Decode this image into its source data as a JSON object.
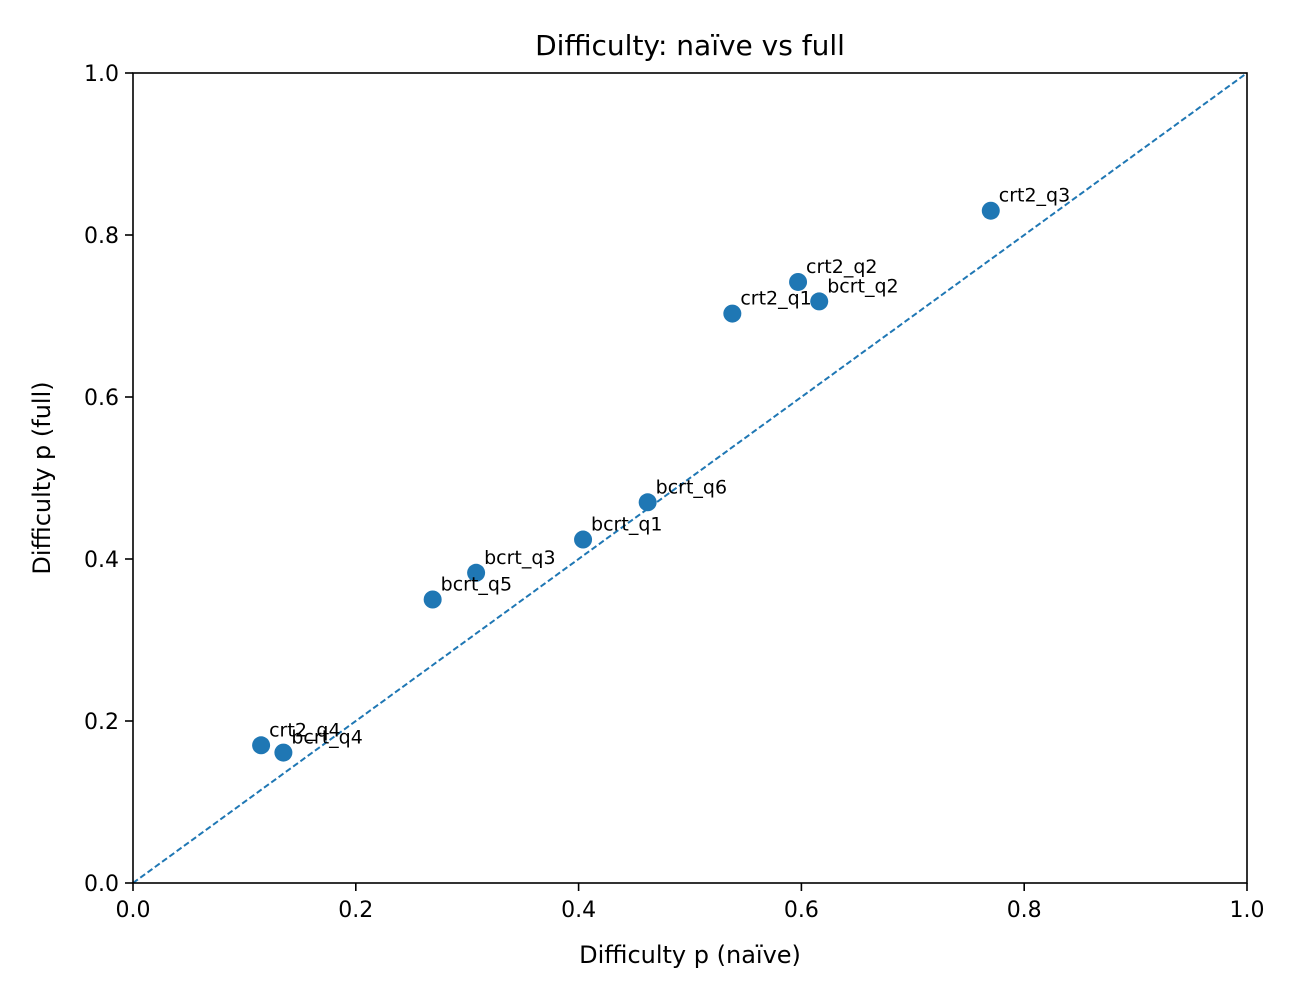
{
  "chart_data": {
    "type": "scatter",
    "title": "Difficulty: naïve vs full",
    "xlabel": "Difficulty p (naïve)",
    "ylabel": "Difficulty p (full)",
    "xlim": [
      0.0,
      1.0
    ],
    "ylim": [
      0.0,
      1.0
    ],
    "xticks": [
      "0.0",
      "0.2",
      "0.4",
      "0.6",
      "0.8",
      "1.0"
    ],
    "yticks": [
      "0.0",
      "0.2",
      "0.4",
      "0.6",
      "0.8",
      "1.0"
    ],
    "grid": false,
    "legend": "none",
    "point_color": "#1f77b4",
    "reference_line": {
      "style": "dashed",
      "color": "#1f77b4",
      "from": [
        0.0,
        0.0
      ],
      "to": [
        1.0,
        1.0
      ]
    },
    "points": [
      {
        "label": "crt2_q3",
        "x": 0.77,
        "y": 0.83
      },
      {
        "label": "crt2_q2",
        "x": 0.597,
        "y": 0.742
      },
      {
        "label": "bcrt_q2",
        "x": 0.616,
        "y": 0.718
      },
      {
        "label": "crt2_q1",
        "x": 0.538,
        "y": 0.703
      },
      {
        "label": "bcrt_q6",
        "x": 0.462,
        "y": 0.47
      },
      {
        "label": "bcrt_q1",
        "x": 0.404,
        "y": 0.424
      },
      {
        "label": "bcrt_q3",
        "x": 0.308,
        "y": 0.383
      },
      {
        "label": "bcrt_q5",
        "x": 0.269,
        "y": 0.35
      },
      {
        "label": "crt2_q4",
        "x": 0.115,
        "y": 0.17
      },
      {
        "label": "bcrt_q4",
        "x": 0.135,
        "y": 0.161
      }
    ]
  }
}
